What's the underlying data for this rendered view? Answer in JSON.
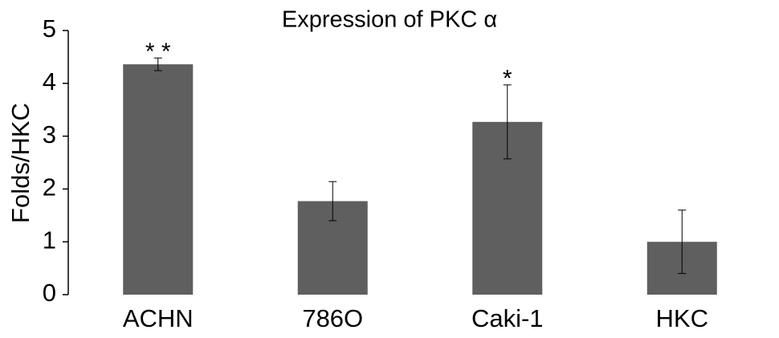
{
  "chart_data": {
    "type": "bar",
    "title": "Expression of PKC α",
    "y_label": "Folds/HKC",
    "categories": [
      "ACHN",
      "786O",
      "Caki-1",
      "HKC"
    ],
    "values": [
      4.36,
      1.77,
      3.27,
      1.0
    ],
    "errors": [
      0.12,
      0.37,
      0.7,
      0.6
    ],
    "color": "#5f5f5f",
    "ylim": [
      0,
      5
    ],
    "yticks": [
      0,
      1,
      2,
      3,
      4,
      5
    ],
    "grid": false,
    "annotations": [
      {
        "text": "* *",
        "category": "ACHN"
      },
      {
        "text": "*",
        "category": "Caki-1"
      }
    ]
  }
}
